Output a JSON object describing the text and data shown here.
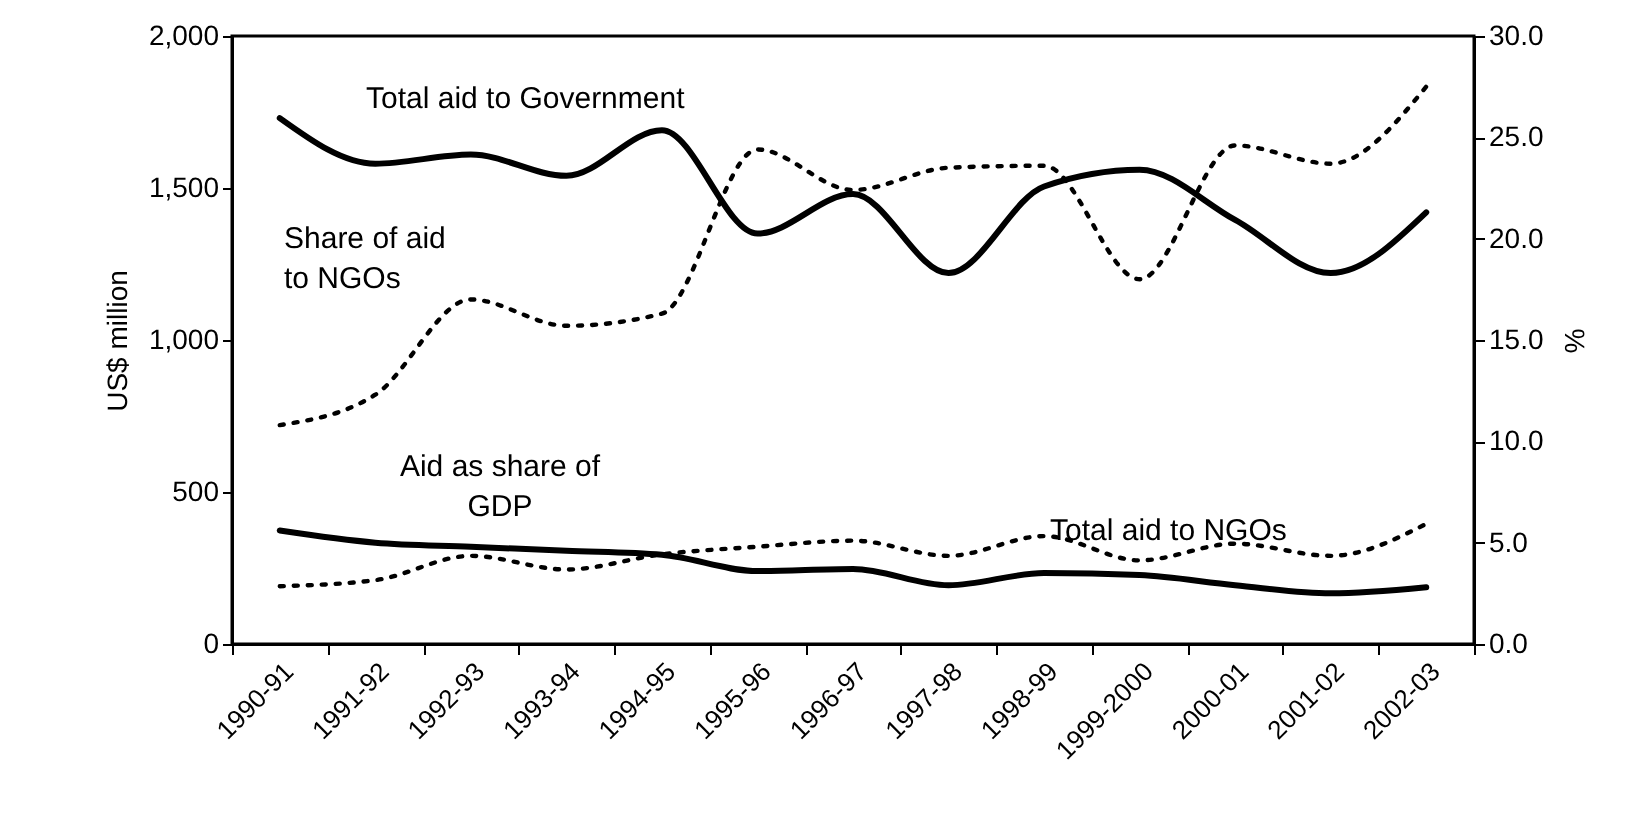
{
  "chart_data": {
    "type": "line",
    "ylabel": "US$ million",
    "y2label": "%",
    "categories": [
      "1990-91",
      "1991-92",
      "1992-93",
      "1993-94",
      "1994-95",
      "1995-96",
      "1996-97",
      "1997-98",
      "1998-99",
      "1999-2000",
      "2000-01",
      "2001-02",
      "2002-03"
    ],
    "ylim": [
      0,
      2000
    ],
    "yticks": [
      0,
      500,
      {
        "value": 1000,
        "label": "1,000"
      },
      {
        "value": 1500,
        "label": "1,500"
      },
      {
        "value": 2000,
        "label": "2,000"
      }
    ],
    "y2lim": [
      0,
      30
    ],
    "y2ticks": [
      {
        "value": 0,
        "label": "0.0"
      },
      {
        "value": 5,
        "label": "5.0"
      },
      {
        "value": 10,
        "label": "10.0"
      },
      {
        "value": 15,
        "label": "15.0"
      },
      {
        "value": 20,
        "label": "20.0"
      },
      {
        "value": 25,
        "label": "25.0"
      },
      {
        "value": 30,
        "label": "30.0"
      }
    ],
    "marker": "none",
    "series": [
      {
        "name": "Total aid to Government",
        "color": "#000000",
        "axis": "y",
        "line_style": "solid",
        "values": [
          1730,
          1580,
          1610,
          1540,
          1690,
          1350,
          1480,
          1220,
          1505,
          1560,
          1395,
          1220,
          1420
        ]
      },
      {
        "name": "Share of aid to NGOs",
        "color": "#000000",
        "axis": "y2",
        "line_style": "dotted",
        "values": [
          10.8,
          12.3,
          17.0,
          15.7,
          16.3,
          24.4,
          22.4,
          23.5,
          23.6,
          18.0,
          24.6,
          23.7,
          27.5
        ]
      },
      {
        "name": "Aid as share of GDP",
        "color": "#000000",
        "axis": "y2",
        "line_style": "solid",
        "values": [
          5.6,
          5.0,
          4.8,
          4.6,
          4.4,
          3.6,
          3.7,
          2.9,
          3.5,
          3.4,
          2.9,
          2.5,
          2.8
        ]
      },
      {
        "name": "Total aid to NGOs",
        "color": "#000000",
        "axis": "y",
        "line_style": "dotted",
        "values": [
          190,
          210,
          290,
          245,
          295,
          320,
          340,
          290,
          355,
          275,
          330,
          290,
          395
        ]
      }
    ]
  }
}
